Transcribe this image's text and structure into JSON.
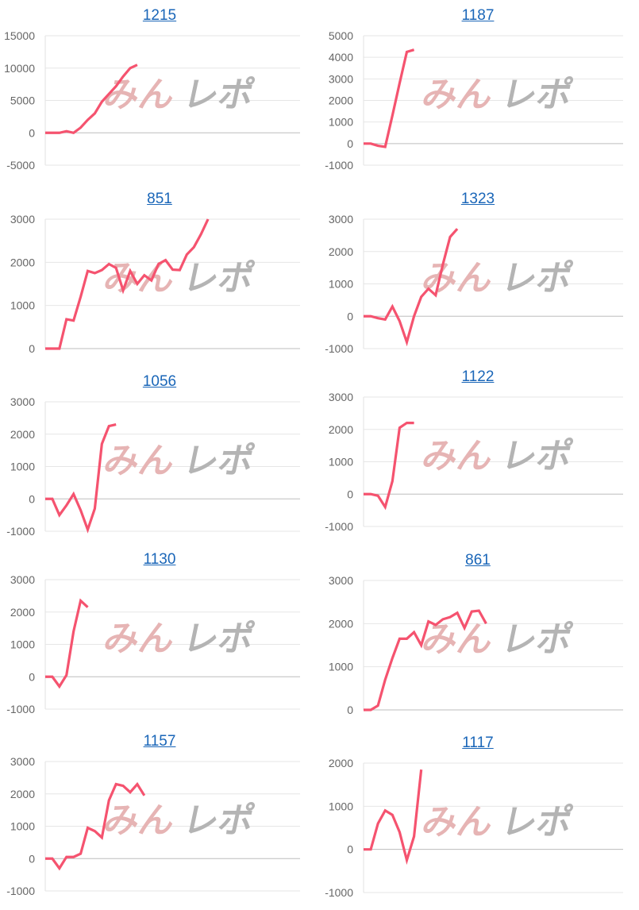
{
  "watermark": {
    "part1": "みん",
    "part2": "レポ",
    "color1": "#e6b4b4",
    "color2": "#b4b4b4"
  },
  "colors": {
    "line": "#f5536f",
    "title": "#1a66b8",
    "grid": "#e6e6e6",
    "zero": "#bdbdbd",
    "tick": "#666666"
  },
  "chart_data": [
    {
      "type": "line",
      "title": "1215",
      "yticks": [
        15000,
        10000,
        5000,
        0,
        -5000
      ],
      "ylim": [
        -5000,
        15000
      ],
      "grid": true,
      "values": [
        0,
        0,
        0,
        250,
        0,
        800,
        2000,
        3000,
        4800,
        6000,
        7200,
        8700,
        10000,
        10500
      ]
    },
    {
      "type": "line",
      "title": "1187",
      "yticks": [
        5000,
        4000,
        3000,
        2000,
        1000,
        0,
        -1000
      ],
      "ylim": [
        -1000,
        5000
      ],
      "grid": true,
      "values": [
        0,
        0,
        -100,
        -150,
        1300,
        2800,
        4250,
        4350
      ]
    },
    {
      "type": "line",
      "title": "851",
      "yticks": [
        3000,
        2000,
        1000,
        0
      ],
      "ylim": [
        0,
        3000
      ],
      "grid": true,
      "values": [
        0,
        0,
        0,
        680,
        650,
        1200,
        1800,
        1750,
        1820,
        1960,
        1870,
        1350,
        1800,
        1500,
        1700,
        1580,
        1960,
        2050,
        1830,
        1820,
        2180,
        2350,
        2650,
        3000
      ]
    },
    {
      "type": "line",
      "title": "1323",
      "yticks": [
        3000,
        2000,
        1000,
        0,
        -1000
      ],
      "ylim": [
        -1000,
        3000
      ],
      "grid": true,
      "values": [
        0,
        0,
        -60,
        -100,
        300,
        -150,
        -800,
        0,
        600,
        850,
        650,
        1600,
        2450,
        2700
      ]
    },
    {
      "type": "line",
      "title": "1056",
      "yticks": [
        3000,
        2000,
        1000,
        0,
        -1000
      ],
      "ylim": [
        -1000,
        3000
      ],
      "grid": true,
      "values": [
        0,
        0,
        -500,
        -200,
        150,
        -350,
        -950,
        -300,
        1700,
        2250,
        2300
      ]
    },
    {
      "type": "line",
      "title": "1122",
      "yticks": [
        3000,
        2000,
        1000,
        0,
        -1000
      ],
      "ylim": [
        -1000,
        3000
      ],
      "grid": true,
      "values": [
        0,
        0,
        -50,
        -400,
        400,
        2050,
        2200,
        2200
      ]
    },
    {
      "type": "line",
      "title": "1130",
      "yticks": [
        3000,
        2000,
        1000,
        0,
        -1000
      ],
      "ylim": [
        -1000,
        3000
      ],
      "grid": true,
      "values": [
        0,
        0,
        -300,
        50,
        1400,
        2350,
        2150
      ]
    },
    {
      "type": "line",
      "title": "861",
      "yticks": [
        3000,
        2000,
        1000,
        0
      ],
      "ylim": [
        0,
        3000
      ],
      "grid": true,
      "values": [
        0,
        0,
        100,
        700,
        1200,
        1650,
        1650,
        1800,
        1500,
        2050,
        1970,
        2100,
        2150,
        2250,
        1900,
        2280,
        2300,
        2000
      ]
    },
    {
      "type": "line",
      "title": "1157",
      "yticks": [
        3000,
        2000,
        1000,
        0,
        -1000
      ],
      "ylim": [
        -1000,
        3000
      ],
      "grid": true,
      "values": [
        0,
        0,
        -300,
        50,
        50,
        150,
        950,
        850,
        650,
        1800,
        2300,
        2250,
        2050,
        2300,
        1950
      ]
    },
    {
      "type": "line",
      "title": "1117",
      "yticks": [
        2000,
        1000,
        0,
        -1000
      ],
      "ylim": [
        -1000,
        2000
      ],
      "grid": true,
      "values": [
        0,
        0,
        600,
        900,
        800,
        400,
        -250,
        300,
        1850
      ]
    }
  ]
}
